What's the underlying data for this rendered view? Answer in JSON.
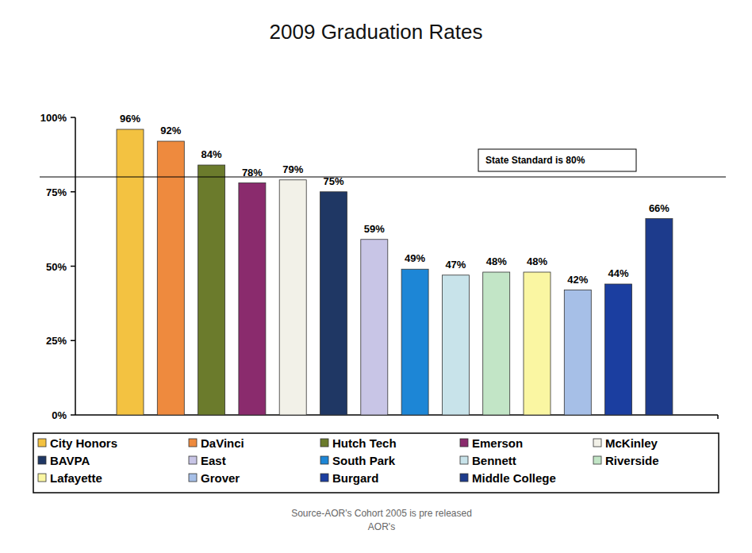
{
  "chart_data": {
    "type": "bar",
    "title": "2009 Graduation Rates",
    "categories": [
      "City Honors",
      "DaVinci",
      "Hutch Tech",
      "Emerson",
      "McKinley",
      "BAVPA",
      "East",
      "South Park",
      "Bennett",
      "Riverside",
      "Lafayette",
      "Grover",
      "Burgard",
      "Middle College"
    ],
    "values": [
      96,
      92,
      84,
      78,
      79,
      75,
      59,
      49,
      47,
      48,
      48,
      42,
      44,
      66
    ],
    "value_labels": [
      "96%",
      "92%",
      "84%",
      "78%",
      "79%",
      "75%",
      "59%",
      "49%",
      "47%",
      "48%",
      "48%",
      "42%",
      "44%",
      "66%"
    ],
    "colors": [
      "#f3c241",
      "#ee8a3e",
      "#6b7b2c",
      "#8a2b6d",
      "#f2f1e8",
      "#1f3764",
      "#c8c5e6",
      "#1d86d6",
      "#c8e3ea",
      "#c2e5c6",
      "#faf6a2",
      "#a6bfe7",
      "#1b3ea0",
      "#1d3b8c"
    ],
    "ylim": [
      0,
      100
    ],
    "yticks": [
      {
        "value": 0,
        "label": "0%"
      },
      {
        "value": 25,
        "label": "25%"
      },
      {
        "value": 50,
        "label": "50%"
      },
      {
        "value": 75,
        "label": "75%"
      },
      {
        "value": 100,
        "label": "100%"
      }
    ],
    "grid": false,
    "data_labels": true,
    "tick_labels": "y",
    "legend": "bottom",
    "annotations": [
      {
        "text": "State Standard is 80%",
        "y": 80
      }
    ],
    "source": [
      "Source-AOR's Cohort 2005 is pre released",
      "AOR's"
    ]
  }
}
